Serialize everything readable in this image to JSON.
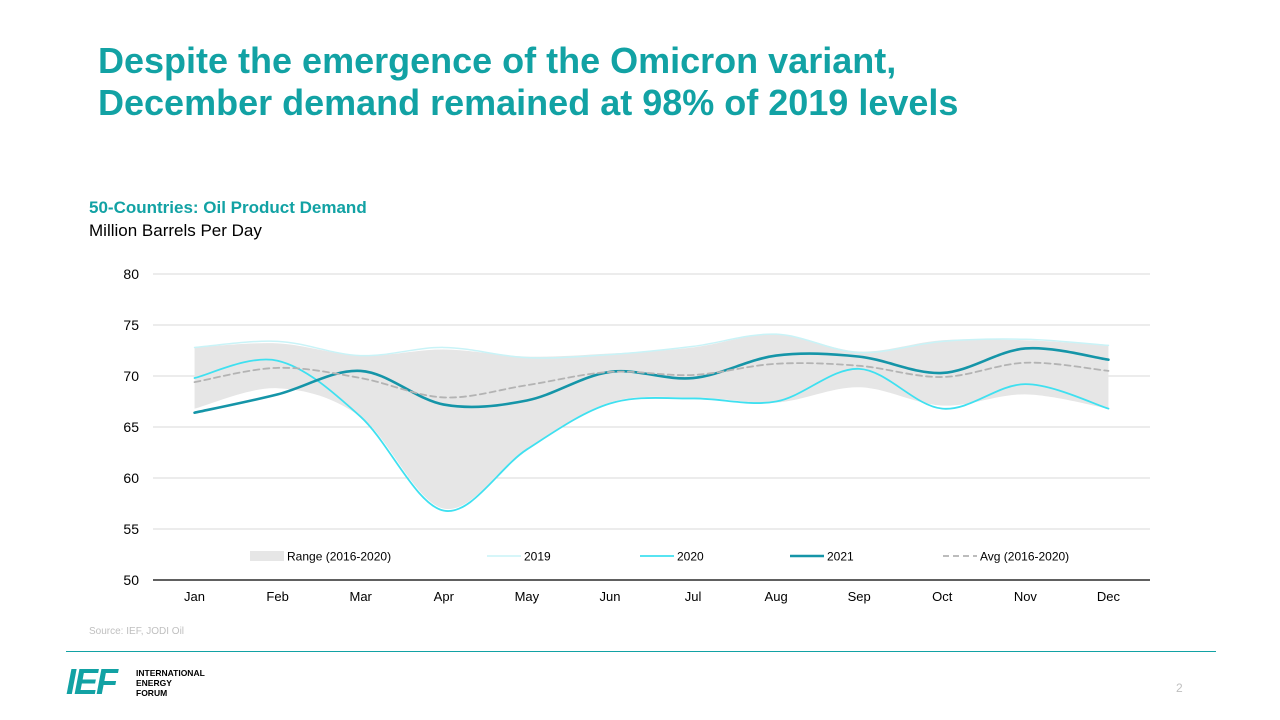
{
  "slide": {
    "title_line1": "Despite the emergence of the Omicron variant,",
    "title_line2": "December demand remained at 98% of 2019 levels",
    "source": "Source: IEF, JODI Oil",
    "page_number": "2",
    "logo": {
      "mark": "IEF",
      "line1": "INTERNATIONAL",
      "line2": "ENERGY",
      "line3": "FORUM",
      "color": "#12a2a4"
    },
    "accent_color": "#12a2a4"
  },
  "chart_data": {
    "type": "line",
    "title": "50-Countries: Oil Product Demand",
    "subtitle": "Million Barrels Per Day",
    "categories": [
      "Jan",
      "Feb",
      "Mar",
      "Apr",
      "May",
      "Jun",
      "Jul",
      "Aug",
      "Sep",
      "Oct",
      "Nov",
      "Dec"
    ],
    "ylim": [
      50,
      80
    ],
    "yticks": [
      50,
      55,
      60,
      65,
      70,
      75,
      80
    ],
    "range": {
      "name": "Range (2016-2020)",
      "color": "#e6e6e6",
      "low": [
        66.8,
        68.8,
        66.0,
        57.0,
        62.8,
        67.4,
        67.9,
        67.4,
        68.9,
        67.1,
        68.2,
        66.8
      ],
      "high": [
        72.8,
        73.2,
        72.0,
        72.6,
        71.9,
        72.2,
        72.8,
        74.1,
        72.4,
        73.5,
        73.5,
        73.0
      ]
    },
    "series": [
      {
        "name": "2019",
        "color": "#c9f3f7",
        "width": 1.5,
        "dash": "",
        "values": [
          72.8,
          73.4,
          72.0,
          72.8,
          71.8,
          72.1,
          72.9,
          74.1,
          72.3,
          73.4,
          73.6,
          73.0
        ]
      },
      {
        "name": "2020",
        "color": "#3fe0f0",
        "width": 1.8,
        "dash": "",
        "values": [
          69.8,
          71.5,
          66.0,
          56.8,
          62.8,
          67.3,
          67.8,
          67.5,
          70.7,
          66.8,
          69.2,
          66.8
        ]
      },
      {
        "name": "2021",
        "color": "#1595a8",
        "width": 2.6,
        "dash": "",
        "values": [
          66.4,
          68.2,
          70.5,
          67.2,
          67.6,
          70.4,
          69.8,
          72.0,
          71.9,
          70.3,
          72.7,
          71.6
        ]
      },
      {
        "name": "Avg (2016-2020)",
        "color": "#b3b3b3",
        "width": 1.8,
        "dash": "6,4",
        "values": [
          69.4,
          70.8,
          69.8,
          67.9,
          69.1,
          70.4,
          70.1,
          71.2,
          71.0,
          69.9,
          71.3,
          70.5
        ]
      }
    ],
    "legend": [
      "Range (2016-2020)",
      "2019",
      "2020",
      "2021",
      "Avg (2016-2020)"
    ],
    "legend_position": "bottom-inside",
    "grid": true
  }
}
